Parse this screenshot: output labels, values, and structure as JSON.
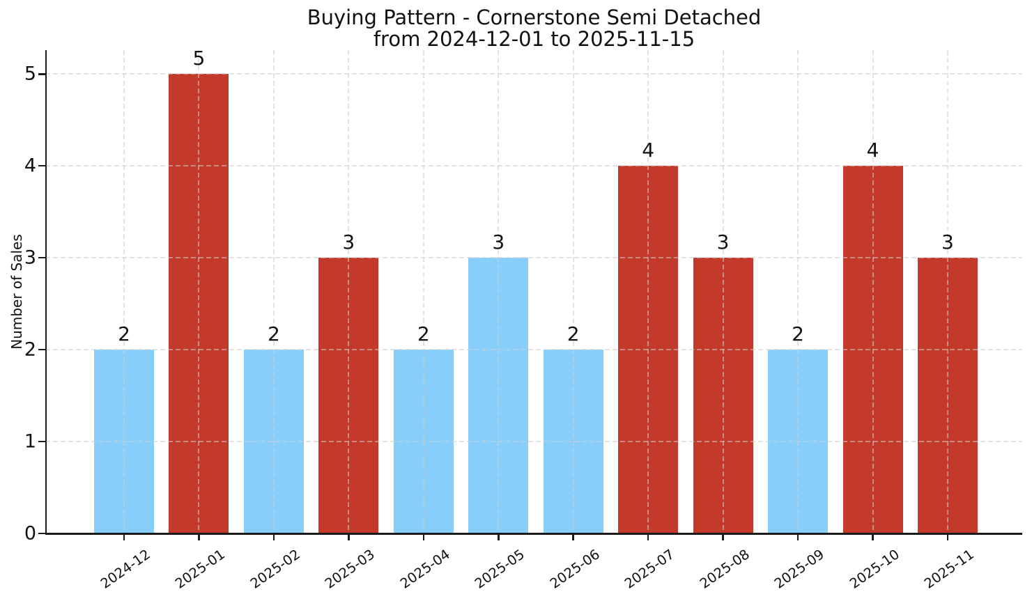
{
  "figure": {
    "kind": "matplotlib-style bar chart screenshot",
    "background": "#ffffff",
    "text_color": "#111111",
    "axis_color": "#1b1b1b",
    "grid_color": "#dcdcdc"
  },
  "chart_data": {
    "type": "bar",
    "title": "Buying Pattern - Cornerstone Semi Detached",
    "subtitle": "from 2024-12-01 to 2025-11-15",
    "xlabel": "",
    "ylabel": "Number of Sales",
    "categories": [
      "2024-12",
      "2025-01",
      "2025-02",
      "2025-03",
      "2025-04",
      "2025-05",
      "2025-06",
      "2025-07",
      "2025-08",
      "2025-09",
      "2025-10",
      "2025-11"
    ],
    "values": [
      2,
      5,
      2,
      3,
      2,
      3,
      2,
      4,
      3,
      2,
      4,
      3
    ],
    "bar_colors": [
      "#87CEFA",
      "#C33A2B",
      "#87CEFA",
      "#C33A2B",
      "#87CEFA",
      "#87CEFA",
      "#87CEFA",
      "#C33A2B",
      "#C33A2B",
      "#87CEFA",
      "#C33A2B",
      "#C33A2B"
    ],
    "palette": {
      "regular_month": "#87CEFA",
      "peak_month": "#C33A2B"
    },
    "value_labels_shown": true,
    "yticks": [
      0,
      1,
      2,
      3,
      4,
      5
    ],
    "ylim": [
      0,
      5.26
    ],
    "grid": true,
    "grid_style": "dashed",
    "legend_position": "none",
    "x_tick_rotation_deg": 35
  }
}
